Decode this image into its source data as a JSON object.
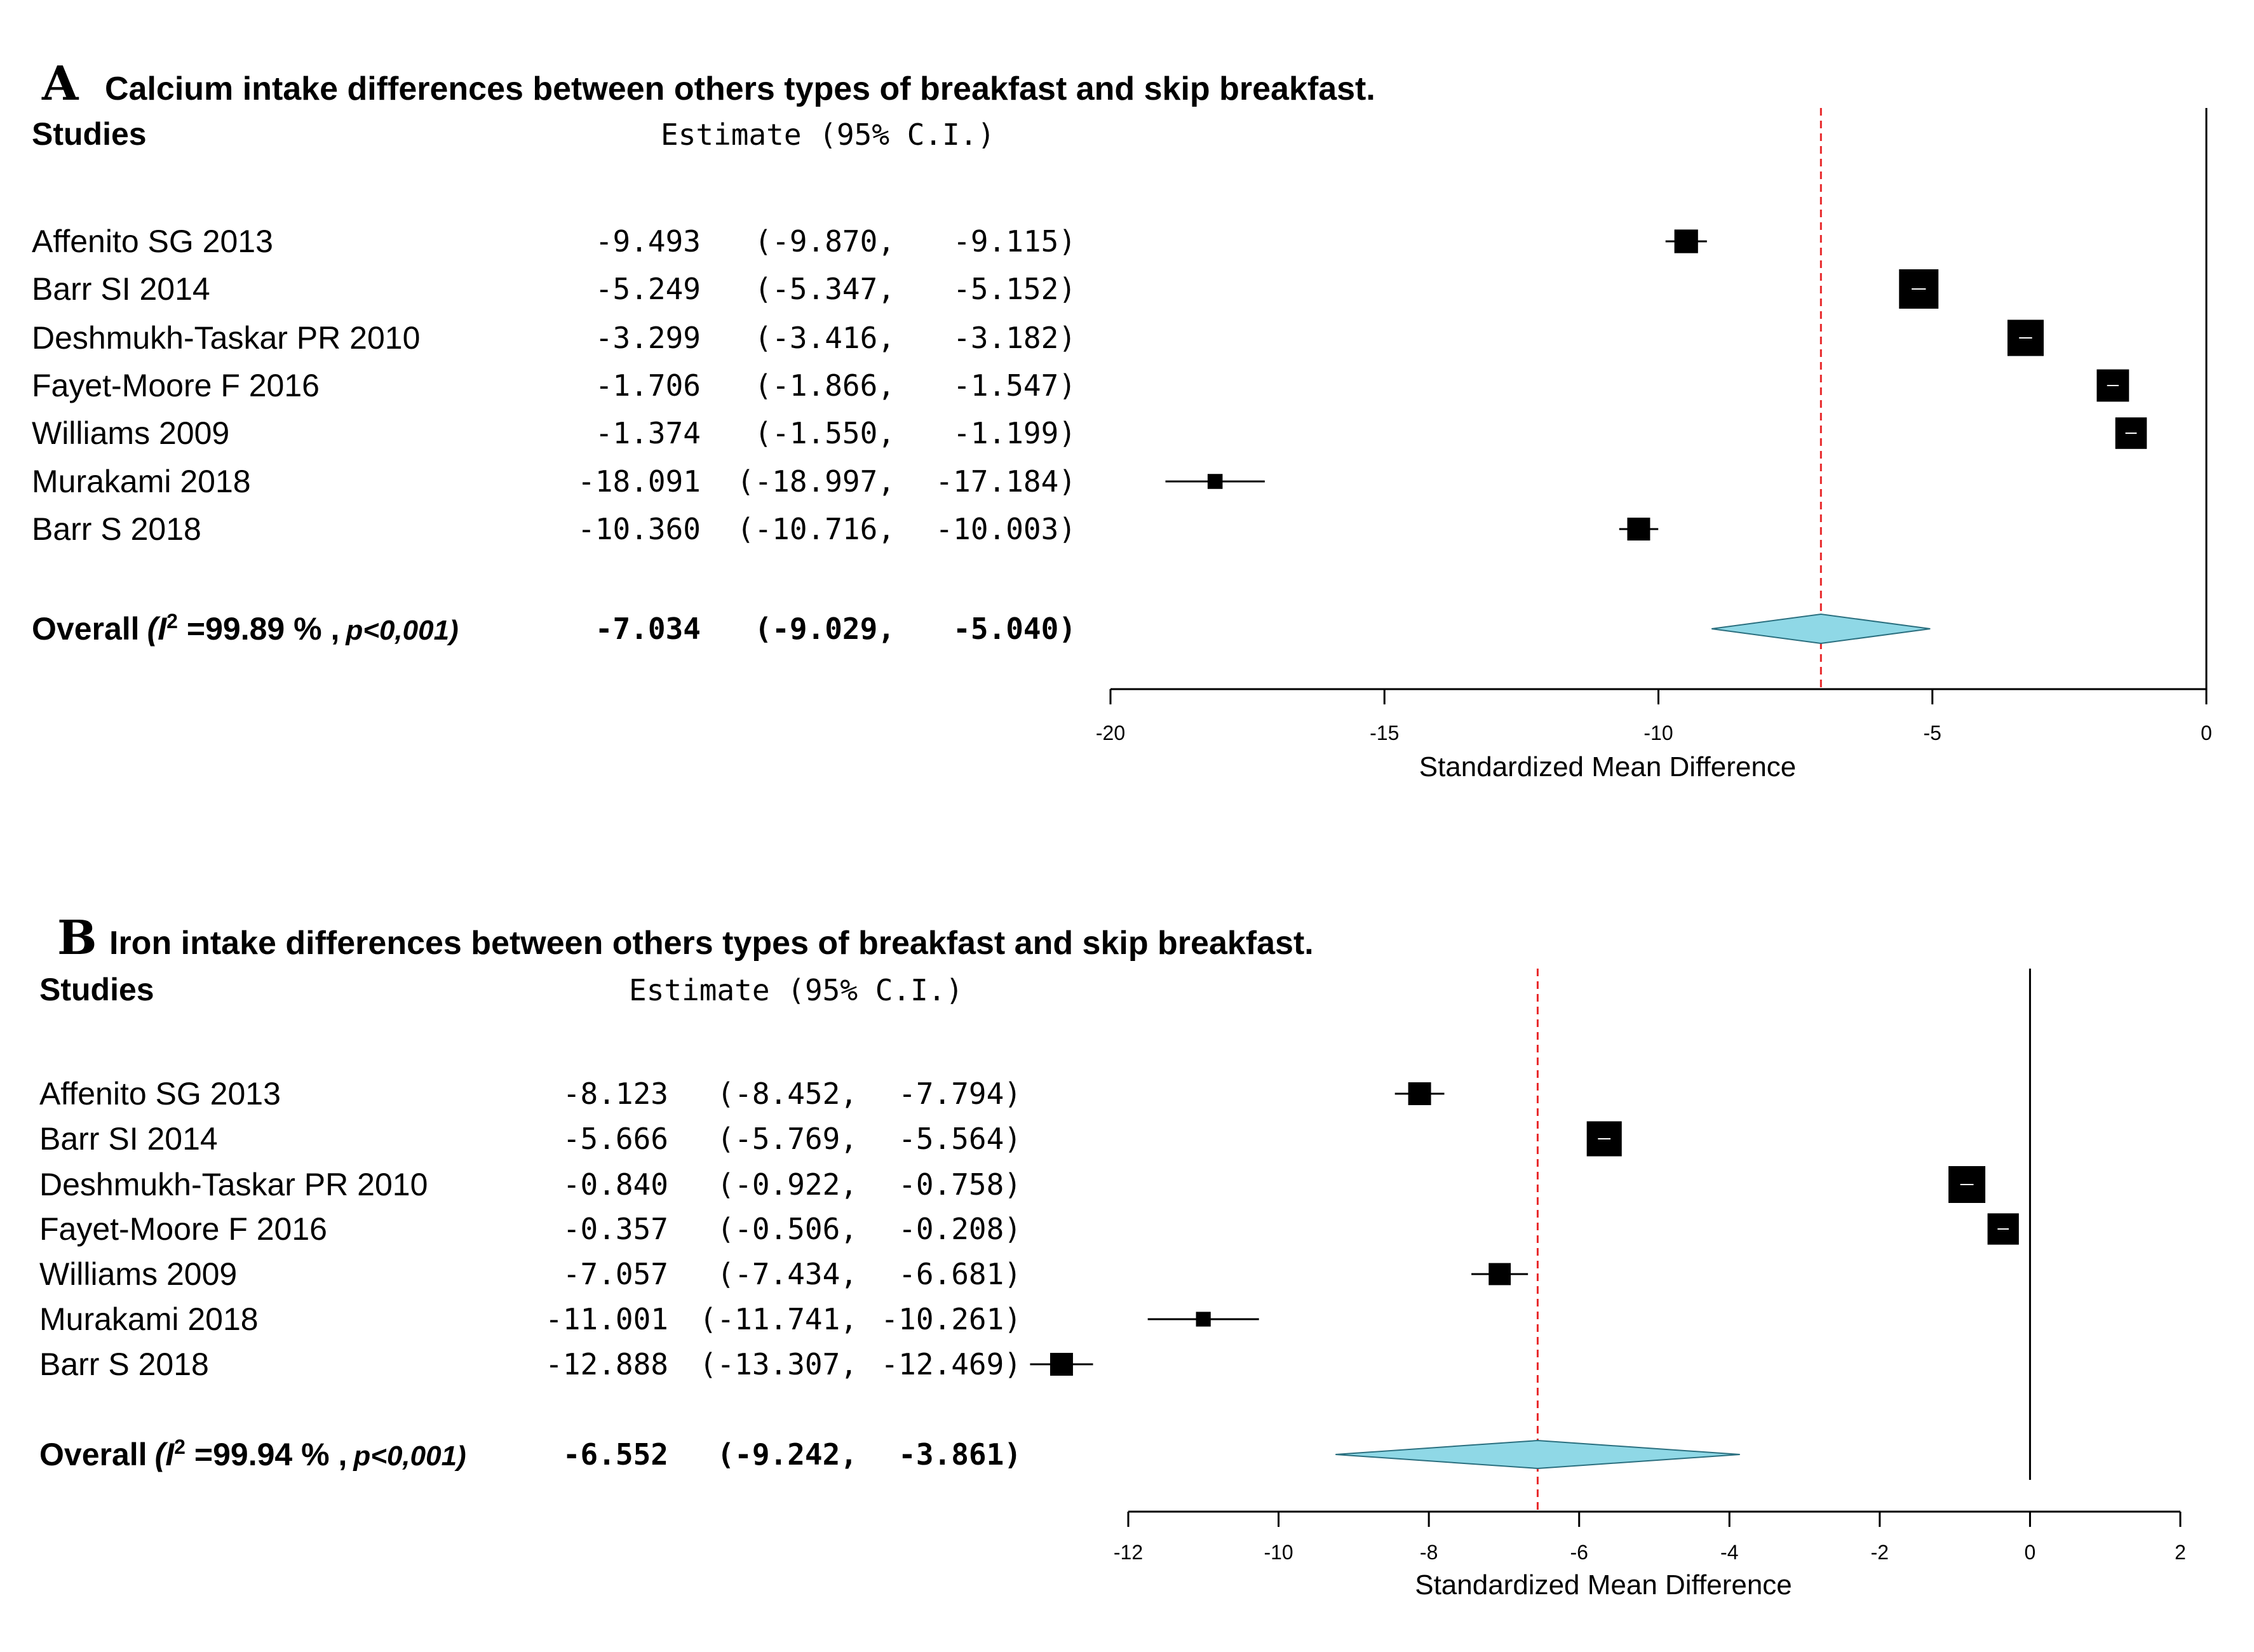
{
  "chart_data": [
    {
      "type": "forest",
      "panel_letter": "A",
      "title": "Calcium intake differences between others types of breakfast and skip breakfast.",
      "studies_header": "Studies",
      "estimate_header": "Estimate (95% C.I.)",
      "xlabel": "Standardized Mean Difference",
      "xlim": [
        -20,
        0
      ],
      "xticks": [
        -20,
        -15,
        -10,
        -5,
        0
      ],
      "reference_line": "dashed-red",
      "studies": [
        {
          "name": "Affenito  SG 2013",
          "est": -9.493,
          "lo": -9.87,
          "hi": -9.115,
          "est_text": "-9.493",
          "lo_text": "(-9.870,",
          "hi_text": "-9.115)",
          "weight": 0.6
        },
        {
          "name": "Barr SI 2014",
          "est": -5.249,
          "lo": -5.347,
          "hi": -5.152,
          "est_text": "-5.249",
          "lo_text": "(-5.347,",
          "hi_text": "-5.152)",
          "weight": 1.0
        },
        {
          "name": "Deshmukh-Taskar PR 2010",
          "est": -3.299,
          "lo": -3.416,
          "hi": -3.182,
          "est_text": "-3.299",
          "lo_text": "(-3.416,",
          "hi_text": "-3.182)",
          "weight": 0.92
        },
        {
          "name": "Fayet-Moore F 2016",
          "est": -1.706,
          "lo": -1.866,
          "hi": -1.547,
          "est_text": "-1.706",
          "lo_text": "(-1.866,",
          "hi_text": "-1.547)",
          "weight": 0.82
        },
        {
          "name": "Williams 2009",
          "est": -1.374,
          "lo": -1.55,
          "hi": -1.199,
          "est_text": "-1.374",
          "lo_text": "(-1.550,",
          "hi_text": "-1.199)",
          "weight": 0.8
        },
        {
          "name": "Murakami 2018",
          "est": -18.091,
          "lo": -18.997,
          "hi": -17.184,
          "est_text": "-18.091",
          "lo_text": "(-18.997,",
          "hi_text": "-17.184)",
          "weight": 0.38
        },
        {
          "name": "Barr S 2018",
          "est": -10.36,
          "lo": -10.716,
          "hi": -10.003,
          "est_text": "-10.360",
          "lo_text": "(-10.716,",
          "hi_text": "-10.003)",
          "weight": 0.58
        }
      ],
      "overall": {
        "label": "Overall",
        "het_prefix": "(I",
        "het_sup": "2",
        "het_value": "=99.89 % ,",
        "het_p": "p<0,001)",
        "est": -7.034,
        "lo": -9.029,
        "hi": -5.04,
        "est_text": "-7.034",
        "lo_text": "(-9.029,",
        "hi_text": "-5.040)"
      }
    },
    {
      "type": "forest",
      "panel_letter": "B",
      "title": "Iron intake differences between others types of breakfast and skip breakfast.",
      "studies_header": "Studies",
      "estimate_header": "Estimate (95% C.I.)",
      "xlabel": "Standardized Mean Difference",
      "xlim": [
        -12,
        2
      ],
      "xticks": [
        -12,
        -10,
        -8,
        -6,
        -4,
        -2,
        0,
        2
      ],
      "reference_line": "dashed-red",
      "studies": [
        {
          "name": "Affenito  SG 2013",
          "est": -8.123,
          "lo": -8.452,
          "hi": -7.794,
          "est_text": "-8.123",
          "lo_text": "(-8.452,",
          "hi_text": "-7.794)",
          "weight": 0.62
        },
        {
          "name": "Barr SI 2014",
          "est": -5.666,
          "lo": -5.769,
          "hi": -5.564,
          "est_text": "-5.666",
          "lo_text": "(-5.769,",
          "hi_text": "-5.564)",
          "weight": 0.95
        },
        {
          "name": "Deshmukh-Taskar PR 2010",
          "est": -0.84,
          "lo": -0.922,
          "hi": -0.758,
          "est_text": "-0.840",
          "lo_text": "(-0.922,",
          "hi_text": "-0.758)",
          "weight": 1.0
        },
        {
          "name": "Fayet-Moore F 2016",
          "est": -0.357,
          "lo": -0.506,
          "hi": -0.208,
          "est_text": "-0.357",
          "lo_text": "(-0.506,",
          "hi_text": "-0.208)",
          "weight": 0.85
        },
        {
          "name": "Williams 2009",
          "est": -7.057,
          "lo": -7.434,
          "hi": -6.681,
          "est_text": "-7.057",
          "lo_text": "(-7.434,",
          "hi_text": "-6.681)",
          "weight": 0.6
        },
        {
          "name": "Murakami 2018",
          "est": -11.001,
          "lo": -11.741,
          "hi": -10.261,
          "est_text": "-11.001",
          "lo_text": "(-11.741,",
          "hi_text": "-10.261)",
          "weight": 0.4
        },
        {
          "name": "Barr S 2018",
          "est": -12.888,
          "lo": -13.307,
          "hi": -12.469,
          "est_text": "-12.888",
          "lo_text": "(-13.307,",
          "hi_text": "-12.469)",
          "weight": 0.62
        }
      ],
      "overall": {
        "label": "Overall",
        "het_prefix": "(I",
        "het_sup": "2",
        "het_value": "=99.94 % ,",
        "het_p": "p<0,001)",
        "est": -6.552,
        "lo": -9.242,
        "hi": -3.861,
        "est_text": "-6.552",
        "lo_text": "(-9.242,",
        "hi_text": "-3.861)"
      }
    }
  ],
  "colors": {
    "marker": "#000000",
    "diamond_fill": "#8fd8e6",
    "reference_line": "#e8282a",
    "axis": "#000000"
  }
}
